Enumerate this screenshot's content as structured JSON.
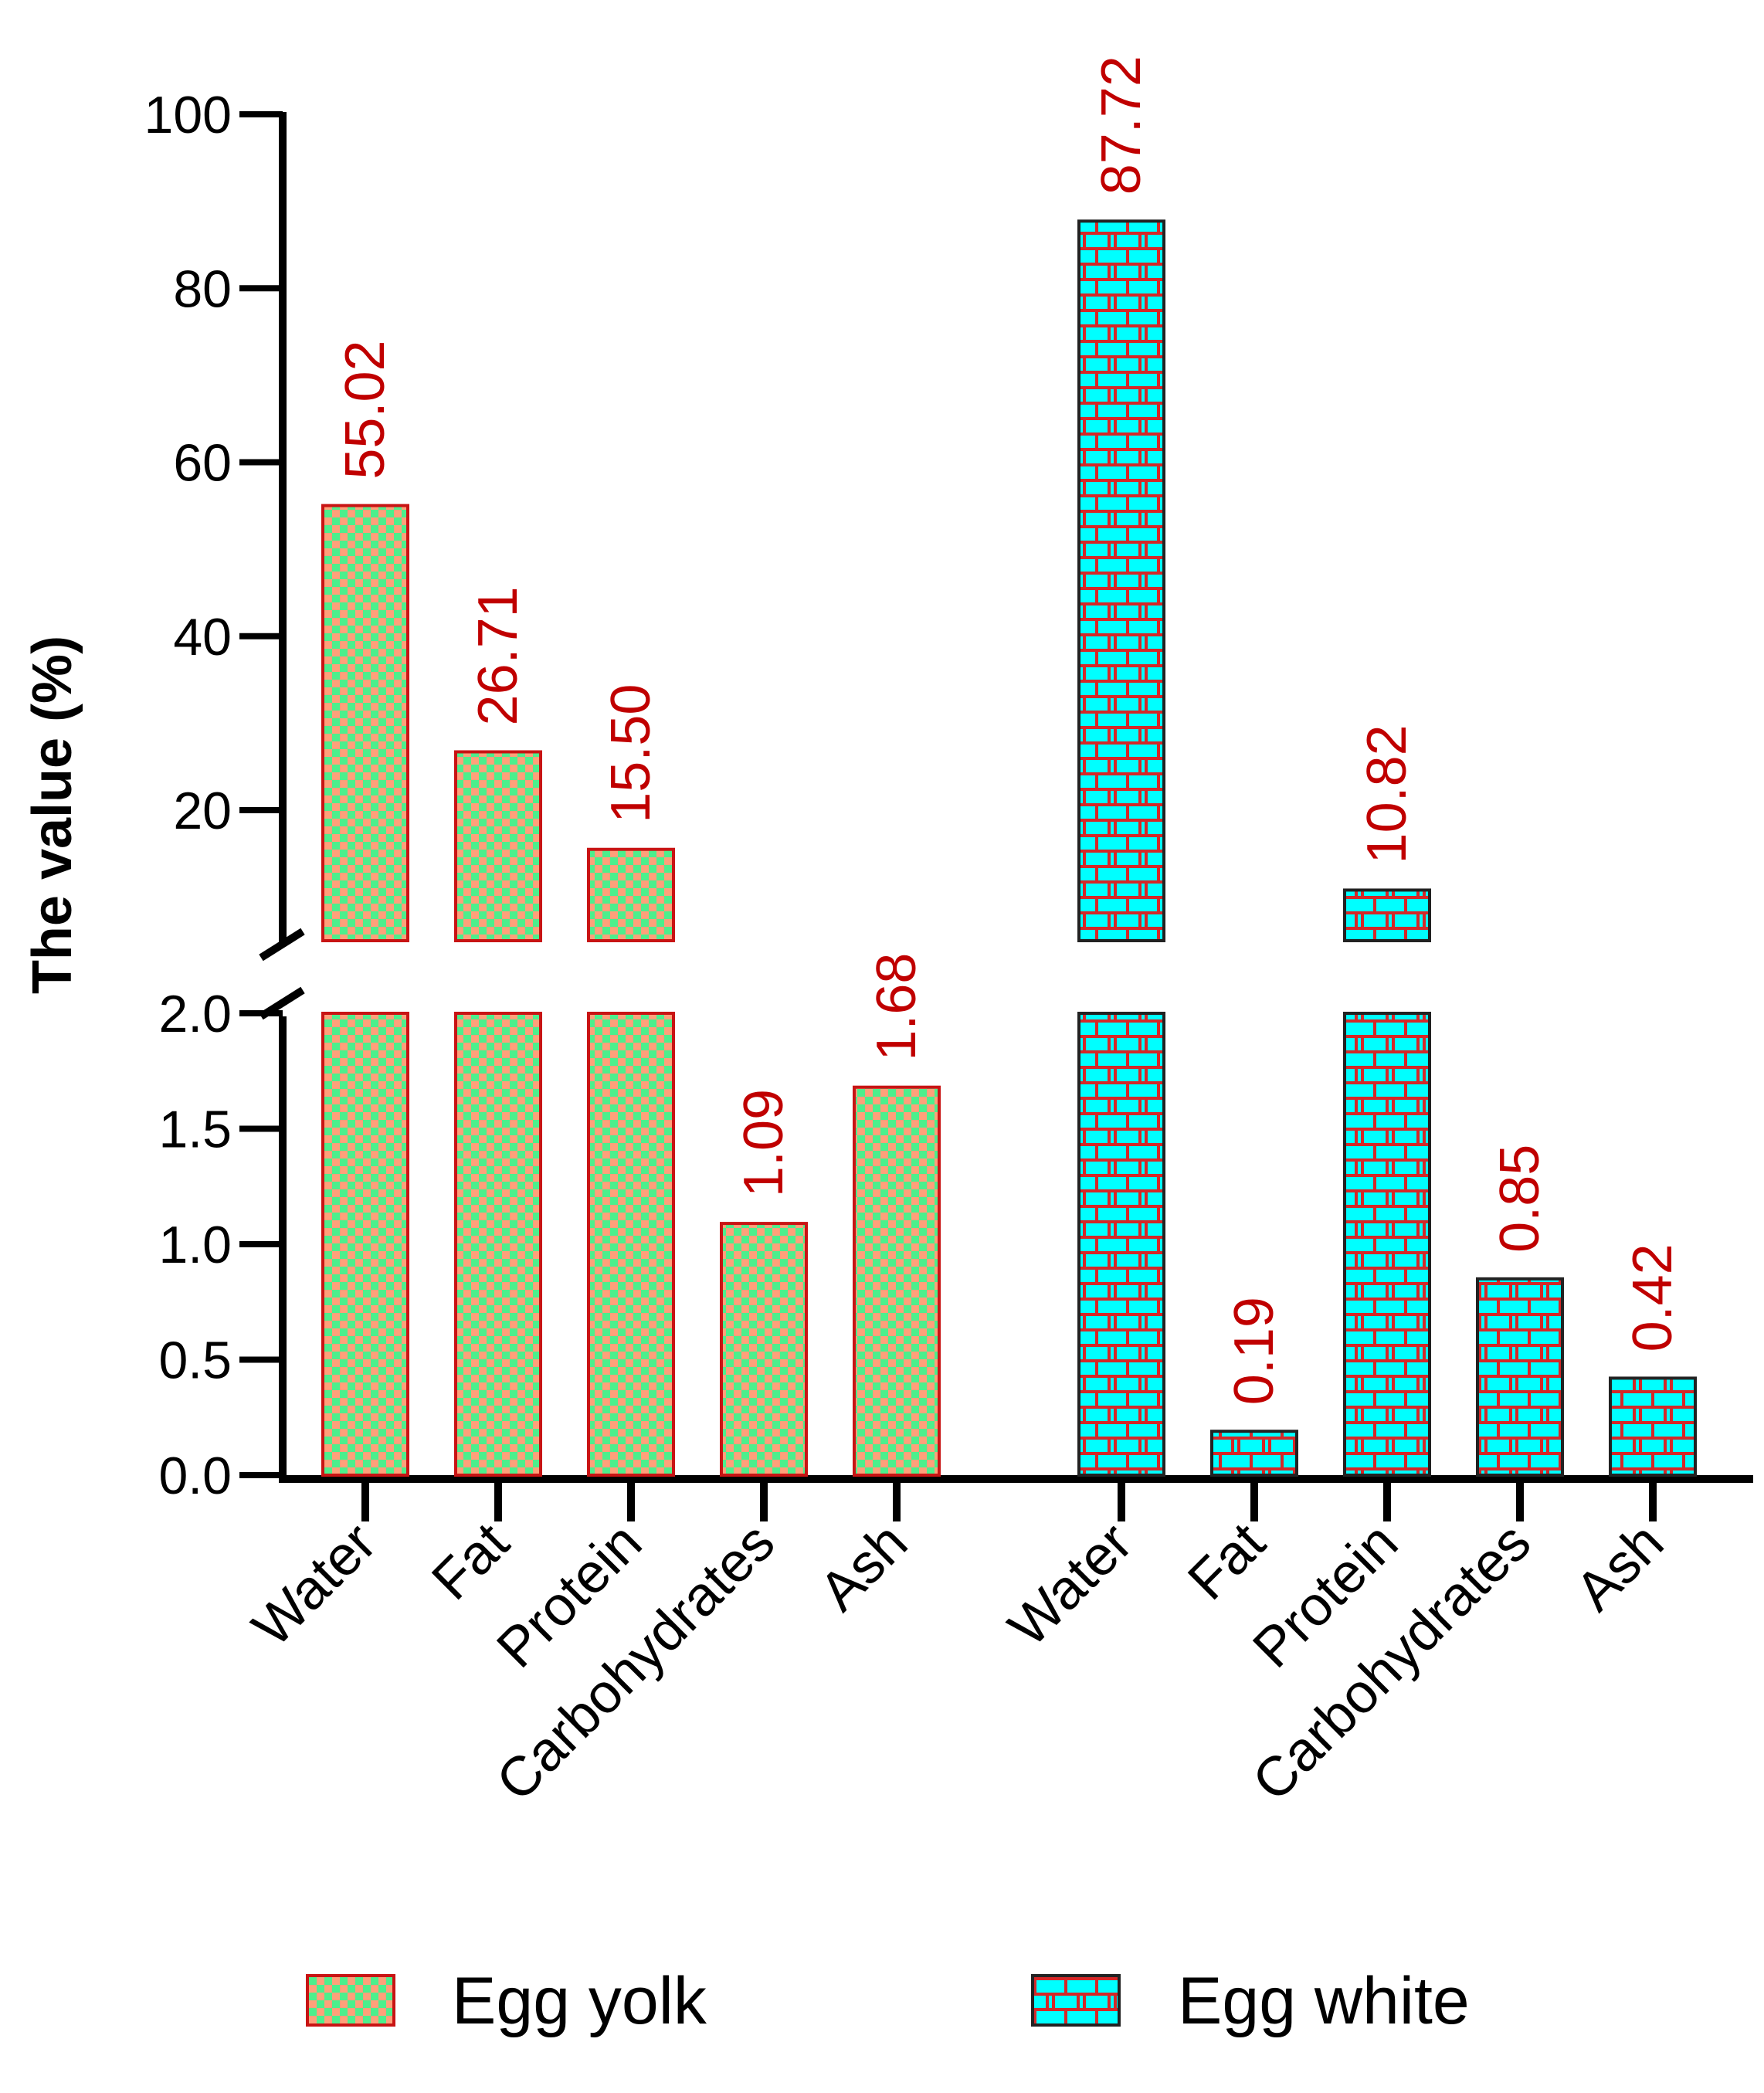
{
  "chart_data": {
    "type": "bar",
    "ylabel": "The value (%)",
    "axis_break": {
      "lower_range": [
        0,
        2.0
      ],
      "upper_range": [
        5,
        100
      ]
    },
    "lower_ticks": [
      "0.0",
      "0.5",
      "1.0",
      "1.5",
      "2.0"
    ],
    "upper_ticks": [
      "20",
      "40",
      "60",
      "80",
      "100"
    ],
    "categories": [
      "Water",
      "Fat",
      "Protein",
      "Carbohydrates",
      "Ash"
    ],
    "series": [
      {
        "name": "Egg yolk",
        "values": [
          55.02,
          26.71,
          15.5,
          1.09,
          1.68
        ],
        "labels": [
          "55.02",
          "26.71",
          "15.50",
          "1.09",
          "1.68"
        ],
        "fill_a": "#ffa07a",
        "fill_b": "#4cef8c",
        "stroke": "#c81414"
      },
      {
        "name": "Egg white",
        "values": [
          87.72,
          0.19,
          10.82,
          0.85,
          0.42
        ],
        "labels": [
          "87.72",
          "0.19",
          "10.82",
          "0.85",
          "0.42"
        ],
        "fill_a": "#00ffff",
        "fill_b": "#d42828",
        "stroke": "#222222"
      }
    ],
    "value_label_color": "#c00000",
    "legend_position": "bottom"
  }
}
